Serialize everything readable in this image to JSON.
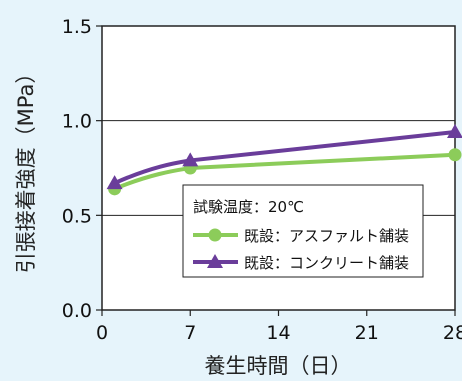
{
  "chart_data": {
    "type": "line",
    "xlabel": "養生時間（日）",
    "ylabel": "引張接着強度（MPa）",
    "x": [
      1,
      7,
      28
    ],
    "xticks": [
      "0",
      "7",
      "14",
      "21",
      "28"
    ],
    "xlim": [
      0,
      28
    ],
    "yticks": [
      "0.0",
      "0.5",
      "1.0",
      "1.5"
    ],
    "ylim": [
      0,
      1.5
    ],
    "grid": "horizontal",
    "legend_title": "試験温度：20℃",
    "legend_position": "center-right",
    "series": [
      {
        "name": "既設：アスファルト舗装",
        "marker": "circle",
        "color": "#8ccc5a",
        "values": [
          0.64,
          0.75,
          0.82
        ]
      },
      {
        "name": "既設：コンクリート舗装",
        "marker": "triangle",
        "color": "#6a3d9a",
        "values": [
          0.67,
          0.79,
          0.94
        ]
      }
    ]
  }
}
